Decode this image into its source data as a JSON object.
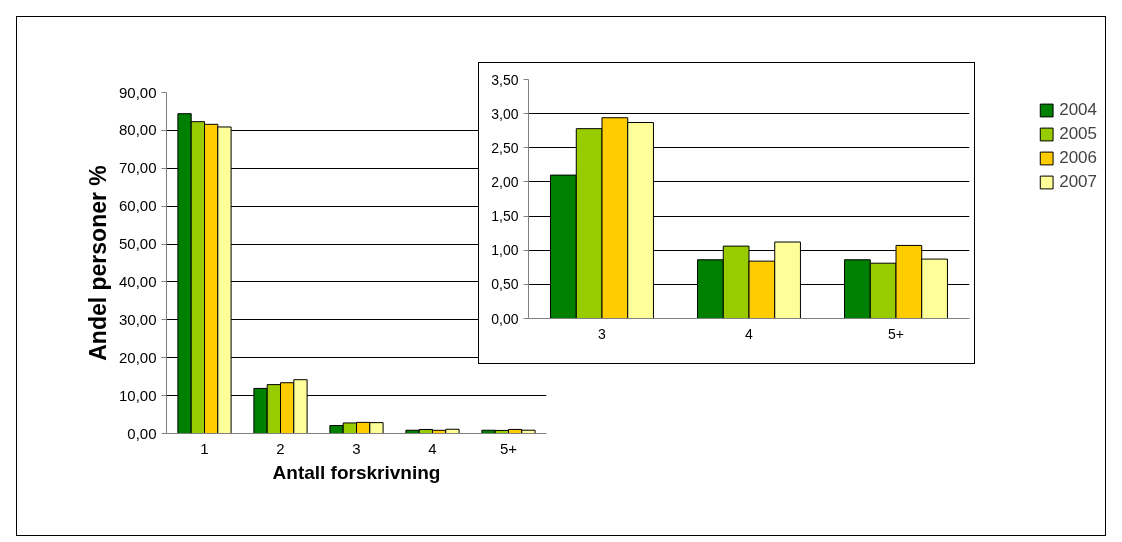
{
  "chart_data": [
    {
      "type": "bar",
      "xlabel": "Antall forskrivning",
      "ylabel": "Andel personer %",
      "categories": [
        "1",
        "2",
        "3",
        "4",
        "5+"
      ],
      "series": [
        {
          "name": "2004",
          "color": "#008000",
          "values": [
            84.4,
            11.9,
            2.1,
            0.86,
            0.86
          ]
        },
        {
          "name": "2005",
          "color": "#99cc00",
          "values": [
            82.3,
            12.9,
            2.78,
            1.06,
            0.81
          ]
        },
        {
          "name": "2006",
          "color": "#ffcc00",
          "values": [
            81.6,
            13.4,
            2.94,
            0.84,
            1.07
          ]
        },
        {
          "name": "2007",
          "color": "#ffff99",
          "values": [
            80.9,
            14.2,
            2.87,
            1.12,
            0.87
          ]
        }
      ],
      "ylim": [
        0,
        90
      ],
      "yticks": [
        {
          "value": 0,
          "label": "0,00"
        },
        {
          "value": 10,
          "label": "10,00"
        },
        {
          "value": 20,
          "label": "20,00"
        },
        {
          "value": 30,
          "label": "30,00"
        },
        {
          "value": 40,
          "label": "40,00"
        },
        {
          "value": 50,
          "label": "50,00"
        },
        {
          "value": 60,
          "label": "60,00"
        },
        {
          "value": 70,
          "label": "70,00"
        },
        {
          "value": 80,
          "label": "80,00"
        },
        {
          "value": 90,
          "label": "90,00"
        }
      ],
      "grid": "y",
      "legend": "right"
    },
    {
      "type": "bar",
      "categories": [
        "3",
        "4",
        "5+"
      ],
      "series": [
        {
          "color": "#008000",
          "values": [
            2.1,
            0.86,
            0.86
          ]
        },
        {
          "color": "#99cc00",
          "values": [
            2.78,
            1.06,
            0.81
          ]
        },
        {
          "color": "#ffcc00",
          "values": [
            2.94,
            0.84,
            1.07
          ]
        },
        {
          "color": "#ffff99",
          "values": [
            2.87,
            1.12,
            0.87
          ]
        }
      ],
      "ylim": [
        0,
        3.5
      ],
      "yticks": [
        {
          "value": 0,
          "label": "0,00"
        },
        {
          "value": 0.5,
          "label": "0,50"
        },
        {
          "value": 1,
          "label": "1,00"
        },
        {
          "value": 1.5,
          "label": "1,50"
        },
        {
          "value": 2,
          "label": "2,00"
        },
        {
          "value": 2.5,
          "label": "2,50"
        },
        {
          "value": 3,
          "label": "3,00"
        },
        {
          "value": 3.5,
          "label": "3,50"
        }
      ],
      "grid": "y"
    }
  ]
}
